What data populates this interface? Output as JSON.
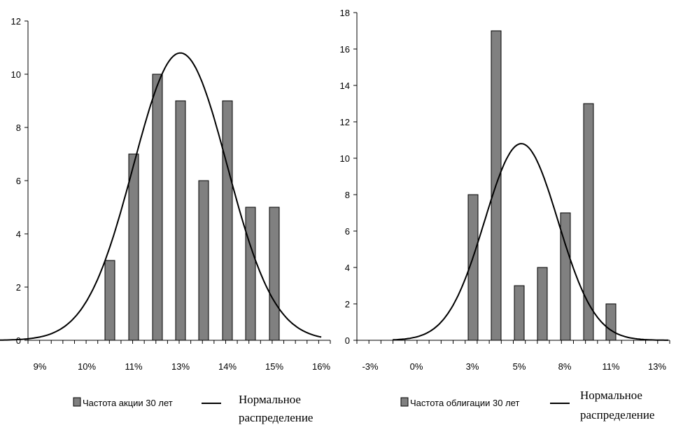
{
  "chart_data": [
    {
      "type": "bar",
      "x_ticks": [
        "9%",
        "10%",
        "11%",
        "13%",
        "14%",
        "15%",
        "16%"
      ],
      "ylim": [
        0,
        12
      ],
      "y_ticks": [
        "0",
        "2",
        "4",
        "6",
        "8",
        "10",
        "12"
      ],
      "bars": [
        {
          "x": 10.5,
          "value": 3
        },
        {
          "x": 11.0,
          "value": 7
        },
        {
          "x": 11.5,
          "value": 10
        },
        {
          "x": 12.0,
          "value": 9
        },
        {
          "x": 12.5,
          "value": 6
        },
        {
          "x": 13.0,
          "value": 9
        },
        {
          "x": 13.5,
          "value": 5
        },
        {
          "x": 14.0,
          "value": 5
        }
      ],
      "curve": {
        "mean": 12.0,
        "sd": 1.0,
        "peak": 10.8,
        "from": 8.0,
        "to": 15.0
      },
      "xrange": [
        8.0,
        15.0
      ],
      "series": [
        {
          "name": "Частота акции 30 лет",
          "kind": "bar",
          "color": "#808080"
        },
        {
          "name_line1": "Нормальное",
          "name_line2": "распределение",
          "kind": "line",
          "color": "#000000"
        }
      ]
    },
    {
      "type": "bar",
      "x_ticks": [
        "-3%",
        "0%",
        "3%",
        "5%",
        "8%",
        "11%",
        "13%"
      ],
      "ylim": [
        0,
        18
      ],
      "y_ticks": [
        "0",
        "2",
        "4",
        "6",
        "8",
        "10",
        "12",
        "14",
        "16",
        "18"
      ],
      "bars": [
        {
          "x": 3.5,
          "value": 8
        },
        {
          "x": 4.5,
          "value": 17
        },
        {
          "x": 5.5,
          "value": 3
        },
        {
          "x": 6.5,
          "value": 4
        },
        {
          "x": 7.5,
          "value": 7
        },
        {
          "x": 8.5,
          "value": 13
        },
        {
          "x": 9.5,
          "value": 2
        }
      ],
      "curve": {
        "mean": 5.6,
        "sd": 1.6,
        "peak": 10.8,
        "from": 0.0,
        "to": 12.0
      },
      "xrange": [
        0.0,
        12.0
      ],
      "series": [
        {
          "name": "Частота облигации 30 лет",
          "kind": "bar",
          "color": "#808080"
        },
        {
          "name_line1": "Нормальное",
          "name_line2": "распределение",
          "kind": "line",
          "color": "#000000"
        }
      ]
    }
  ]
}
